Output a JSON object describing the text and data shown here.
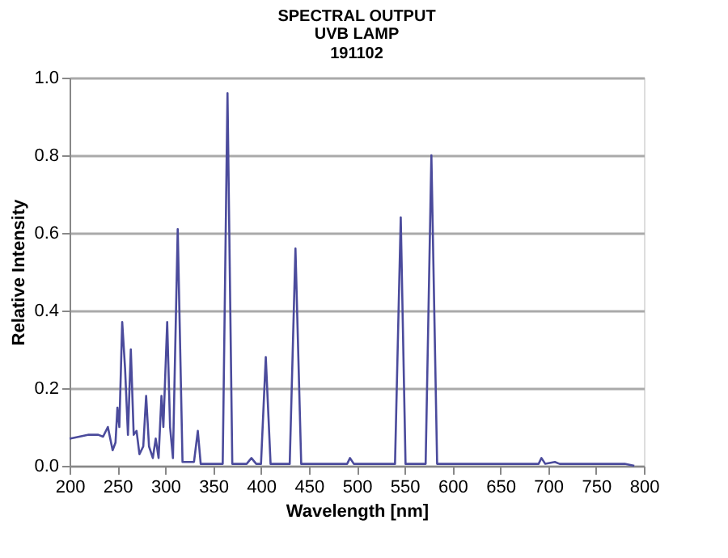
{
  "chart_data": {
    "type": "line",
    "title": "SPECTRAL OUTPUT",
    "subtitle": "UVB LAMP",
    "annotations": [
      "191102"
    ],
    "xlabel": "Wavelength [nm]",
    "ylabel": "Relative Intensity",
    "x": [
      200,
      210,
      220,
      230,
      235,
      240,
      245,
      248,
      250,
      252,
      255,
      258,
      261,
      264,
      267,
      270,
      273,
      277,
      280,
      283,
      287,
      290,
      293,
      296,
      298,
      302,
      305,
      308,
      313,
      318,
      330,
      334,
      337,
      360,
      365,
      370,
      385,
      390,
      395,
      400,
      405,
      410,
      430,
      436,
      442,
      490,
      493,
      497,
      540,
      546,
      551,
      572,
      578,
      584,
      690,
      693,
      697,
      707,
      712,
      780,
      790
    ],
    "series": [
      {
        "color": "#4b4b9c",
        "values": [
          0.07,
          0.075,
          0.08,
          0.08,
          0.075,
          0.1,
          0.04,
          0.06,
          0.15,
          0.1,
          0.37,
          0.25,
          0.08,
          0.3,
          0.08,
          0.09,
          0.03,
          0.05,
          0.18,
          0.05,
          0.02,
          0.07,
          0.02,
          0.18,
          0.1,
          0.37,
          0.1,
          0.02,
          0.61,
          0.01,
          0.01,
          0.09,
          0.005,
          0.005,
          0.96,
          0.005,
          0.005,
          0.02,
          0.005,
          0.005,
          0.28,
          0.005,
          0.005,
          0.56,
          0.005,
          0.005,
          0.02,
          0.005,
          0.005,
          0.64,
          0.005,
          0.005,
          0.8,
          0.005,
          0.005,
          0.02,
          0.005,
          0.01,
          0.005,
          0.005,
          0.0
        ]
      }
    ],
    "xlim": [
      200,
      800
    ],
    "xticks": [
      200,
      250,
      300,
      350,
      400,
      450,
      500,
      550,
      600,
      650,
      700,
      750,
      800
    ],
    "ylim": [
      0,
      1.0
    ],
    "yticks": [
      {
        "value": 0,
        "label": "0.0"
      },
      {
        "value": 0.2,
        "label": "0.2"
      },
      {
        "value": 0.4,
        "label": "0.4"
      },
      {
        "value": 0.6,
        "label": "0.6"
      },
      {
        "value": 0.8,
        "label": "0.8"
      },
      {
        "value": 1.0,
        "label": "1.0"
      }
    ],
    "grid": "y",
    "legend": false,
    "marker": "none",
    "line_style": "solid"
  }
}
